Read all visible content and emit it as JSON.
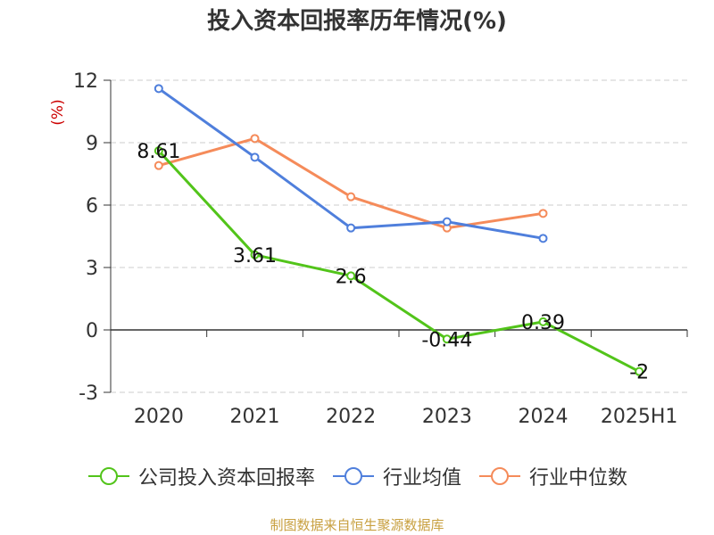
{
  "chart_data": {
    "type": "line",
    "title": "投入资本回报率历年情况(%)",
    "ylabel": "(%)",
    "categories": [
      "2020",
      "2021",
      "2022",
      "2023",
      "2024",
      "2025H1"
    ],
    "y_ticks": [
      -3,
      0,
      3,
      6,
      9,
      12
    ],
    "ylim": [
      -3,
      12
    ],
    "grid": "horizontal-dashed",
    "legend_position": "bottom",
    "series": [
      {
        "name": "公司投入资本回报率",
        "color": "#52c41a",
        "values": [
          8.61,
          3.61,
          2.6,
          -0.44,
          0.39,
          -2
        ],
        "data_labels": [
          "8.61",
          "3.61",
          "2.6",
          "-0.44",
          "0.39",
          "-2"
        ]
      },
      {
        "name": "行业均值",
        "color": "#4f7fdc",
        "values": [
          11.6,
          8.3,
          4.9,
          5.2,
          4.4,
          null
        ]
      },
      {
        "name": "行业中位数",
        "color": "#f58b5a",
        "values": [
          7.9,
          9.2,
          6.4,
          4.9,
          5.6,
          null
        ]
      }
    ]
  },
  "footer": {
    "source": "制图数据来自恒生聚源数据库"
  }
}
